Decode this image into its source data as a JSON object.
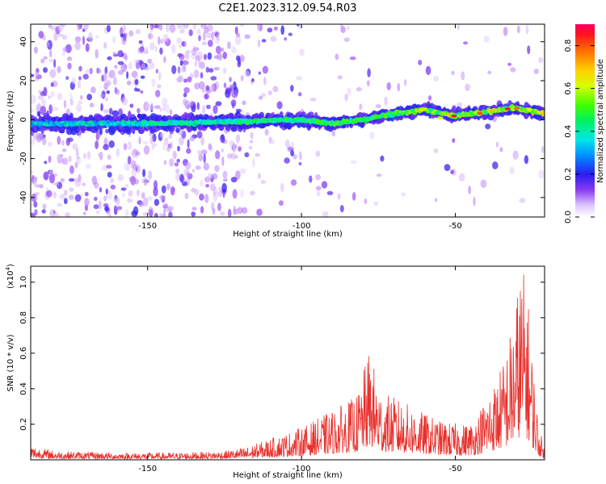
{
  "figure": {
    "title": "C2E1.2023.312.09.54.R03"
  },
  "chart_data": [
    {
      "type": "heatmap",
      "xlabel": "Height of straight line (km)",
      "ylabel": "Frequency (Hz)",
      "xlim": [
        -188,
        -21
      ],
      "ylim": [
        -50,
        49
      ],
      "x_ticks": [
        -150,
        -100,
        -50
      ],
      "y_ticks": [
        -40,
        -20,
        0,
        20,
        40
      ],
      "colorbar": {
        "label": "Normalized spectral amplitude",
        "range": [
          0,
          0.9
        ],
        "ticks": [
          0.0,
          0.2,
          0.4,
          0.6,
          0.8
        ],
        "colormap": "rainbow (white-violet-blue-cyan-green-yellow-orange-red)"
      },
      "ridge": {
        "description": "dominant spectral band near 0 Hz rising to about 5 Hz toward higher heights",
        "points": [
          {
            "x": -188,
            "y": -2
          },
          {
            "x": -150,
            "y": -2
          },
          {
            "x": -120,
            "y": -1
          },
          {
            "x": -100,
            "y": 0
          },
          {
            "x": -90,
            "y": -2
          },
          {
            "x": -80,
            "y": 0
          },
          {
            "x": -70,
            "y": 3
          },
          {
            "x": -60,
            "y": 5
          },
          {
            "x": -50,
            "y": 2
          },
          {
            "x": -40,
            "y": 4
          },
          {
            "x": -30,
            "y": 6
          },
          {
            "x": -21,
            "y": 3
          }
        ]
      }
    },
    {
      "type": "line",
      "xlabel": "Height of straight line (km)",
      "ylabel": "SNR (10 * v/v)",
      "y_scale_label": "(x10",
      "y_scale_exponent": "4",
      "y_scale_close": ")",
      "xlim": [
        -188,
        -21
      ],
      "ylim": [
        0,
        1.09
      ],
      "x_ticks": [
        -150,
        -100,
        -50
      ],
      "y_ticks": [
        0.2,
        0.4,
        0.6,
        0.8,
        1.0
      ],
      "series_color": "#e8302c",
      "envelope": [
        {
          "x": -188,
          "y": 0.08
        },
        {
          "x": -180,
          "y": 0.05
        },
        {
          "x": -160,
          "y": 0.04
        },
        {
          "x": -140,
          "y": 0.04
        },
        {
          "x": -125,
          "y": 0.05
        },
        {
          "x": -118,
          "y": 0.07
        },
        {
          "x": -112,
          "y": 0.11
        },
        {
          "x": -105,
          "y": 0.15
        },
        {
          "x": -98,
          "y": 0.2
        },
        {
          "x": -90,
          "y": 0.28
        },
        {
          "x": -82,
          "y": 0.36
        },
        {
          "x": -78,
          "y": 0.62
        },
        {
          "x": -74,
          "y": 0.38
        },
        {
          "x": -68,
          "y": 0.34
        },
        {
          "x": -62,
          "y": 0.28
        },
        {
          "x": -55,
          "y": 0.22
        },
        {
          "x": -48,
          "y": 0.2
        },
        {
          "x": -44,
          "y": 0.22
        },
        {
          "x": -40,
          "y": 0.36
        },
        {
          "x": -37,
          "y": 0.45
        },
        {
          "x": -34,
          "y": 0.58
        },
        {
          "x": -31,
          "y": 0.82
        },
        {
          "x": -29,
          "y": 1.08
        },
        {
          "x": -27,
          "y": 1.05
        },
        {
          "x": -25,
          "y": 0.6
        },
        {
          "x": -23,
          "y": 0.2
        },
        {
          "x": -21,
          "y": 0.06
        }
      ]
    }
  ]
}
